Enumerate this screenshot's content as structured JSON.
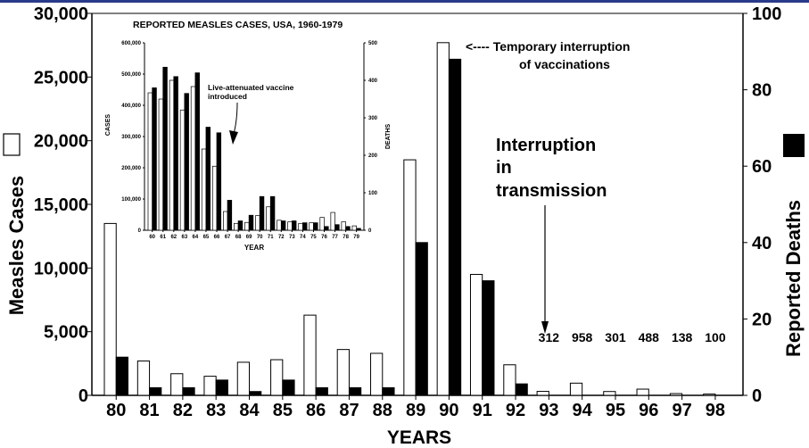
{
  "chart_data": [
    {
      "type": "bar",
      "title": "",
      "xlabel": "YEARS",
      "ylabel": "Measles Cases",
      "y2label": "Reported Deaths",
      "categories": [
        "80",
        "81",
        "82",
        "83",
        "84",
        "85",
        "86",
        "87",
        "88",
        "89",
        "90",
        "91",
        "92",
        "93",
        "94",
        "95",
        "96",
        "97",
        "98"
      ],
      "ylim": [
        0,
        30000
      ],
      "y2lim": [
        0,
        100
      ],
      "yticks": [
        "0",
        "5,000",
        "10,000",
        "15,000",
        "20,000",
        "25,000",
        "30,000"
      ],
      "y2ticks": [
        "0",
        "20",
        "40",
        "60",
        "80",
        "100"
      ],
      "series": [
        {
          "axis": "left",
          "fill": "#ffffff",
          "values": [
            13500,
            2700,
            1700,
            1500,
            2600,
            2800,
            6300,
            3600,
            3300,
            18500,
            27700,
            9500,
            2400,
            312,
            958,
            301,
            488,
            138,
            100
          ]
        },
        {
          "axis": "right",
          "fill": "#000000",
          "values": [
            10,
            2,
            2,
            4,
            1,
            4,
            2,
            2,
            2,
            40,
            88,
            30,
            3,
            0,
            0,
            0,
            0,
            0,
            0
          ]
        }
      ],
      "value_labels": [
        {
          "category": "93",
          "text": "312"
        },
        {
          "category": "94",
          "text": "958"
        },
        {
          "category": "95",
          "text": "301"
        },
        {
          "category": "96",
          "text": "488"
        },
        {
          "category": "97",
          "text": "138"
        },
        {
          "category": "98",
          "text": "100"
        }
      ],
      "annotations": {
        "interruption_vacc_1": "<---- Temporary interruption",
        "interruption_vacc_2": "of vaccinations",
        "transmission_1": "Interruption",
        "transmission_2": "in",
        "transmission_3": "transmission"
      },
      "grid": false,
      "legend": "side swatches"
    },
    {
      "type": "bar",
      "title": "REPORTED MEASLES CASES, USA, 1960-1979",
      "xlabel": "YEAR",
      "ylabel": "CASES",
      "y2label": "DEATHS",
      "categories": [
        "60",
        "61",
        "62",
        "63",
        "64",
        "65",
        "66",
        "67",
        "68",
        "69",
        "70",
        "71",
        "72",
        "73",
        "74",
        "75",
        "76",
        "77",
        "78",
        "79"
      ],
      "ylim": [
        0,
        600000
      ],
      "y2lim": [
        0,
        500
      ],
      "yticks": [
        "0",
        "100,000",
        "200,000",
        "300,000",
        "400,000",
        "500,000",
        "600,000"
      ],
      "y2ticks": [
        "0",
        "100",
        "200",
        "300",
        "400",
        "500"
      ],
      "x_tick_labels": [
        "60",
        "61",
        "62",
        "63",
        "64",
        "65",
        "66",
        "67",
        "68",
        "69",
        "70",
        "71",
        "72",
        "73",
        "74",
        "75",
        "76",
        "77",
        "78",
        "79"
      ],
      "series": [
        {
          "axis": "left",
          "fill": "#ffffff",
          "values": [
            440000,
            420000,
            480000,
            385000,
            460000,
            260000,
            205000,
            60000,
            22000,
            25000,
            47000,
            75000,
            32000,
            27000,
            22000,
            24000,
            41000,
            57000,
            27000,
            14000
          ]
        },
        {
          "axis": "right",
          "fill": "#000000",
          "values": [
            380,
            435,
            410,
            365,
            420,
            275,
            260,
            80,
            25,
            40,
            90,
            90,
            25,
            25,
            20,
            20,
            10,
            15,
            10,
            5
          ]
        }
      ],
      "annotations": {
        "vaccine_1": "Live-attenuated vaccine",
        "vaccine_2": "introduced"
      },
      "grid": false
    }
  ]
}
